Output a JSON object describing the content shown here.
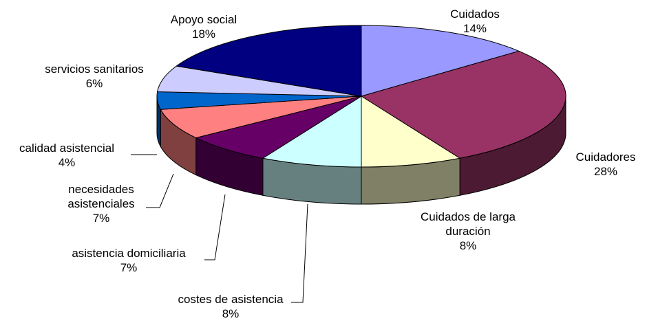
{
  "chart_data": {
    "type": "pie",
    "categories": [
      "Cuidados",
      "Cuidadores",
      "Cuidados de larga duración",
      "costes de asistencia",
      "asistencia domiciliaria",
      "necesidades asistenciales",
      "calidad asistencial",
      "servicios sanitarios",
      "Apoyo social"
    ],
    "values": [
      14,
      28,
      8,
      8,
      7,
      7,
      4,
      6,
      18
    ],
    "value_labels": [
      "14%",
      "28%",
      "8%",
      "8%",
      "7%",
      "7%",
      "4%",
      "6%",
      "18%"
    ],
    "colors": [
      "#9999ff",
      "#993366",
      "#ffffcc",
      "#ccffff",
      "#660066",
      "#ff8080",
      "#0066cc",
      "#ccccff",
      "#000080"
    ]
  }
}
